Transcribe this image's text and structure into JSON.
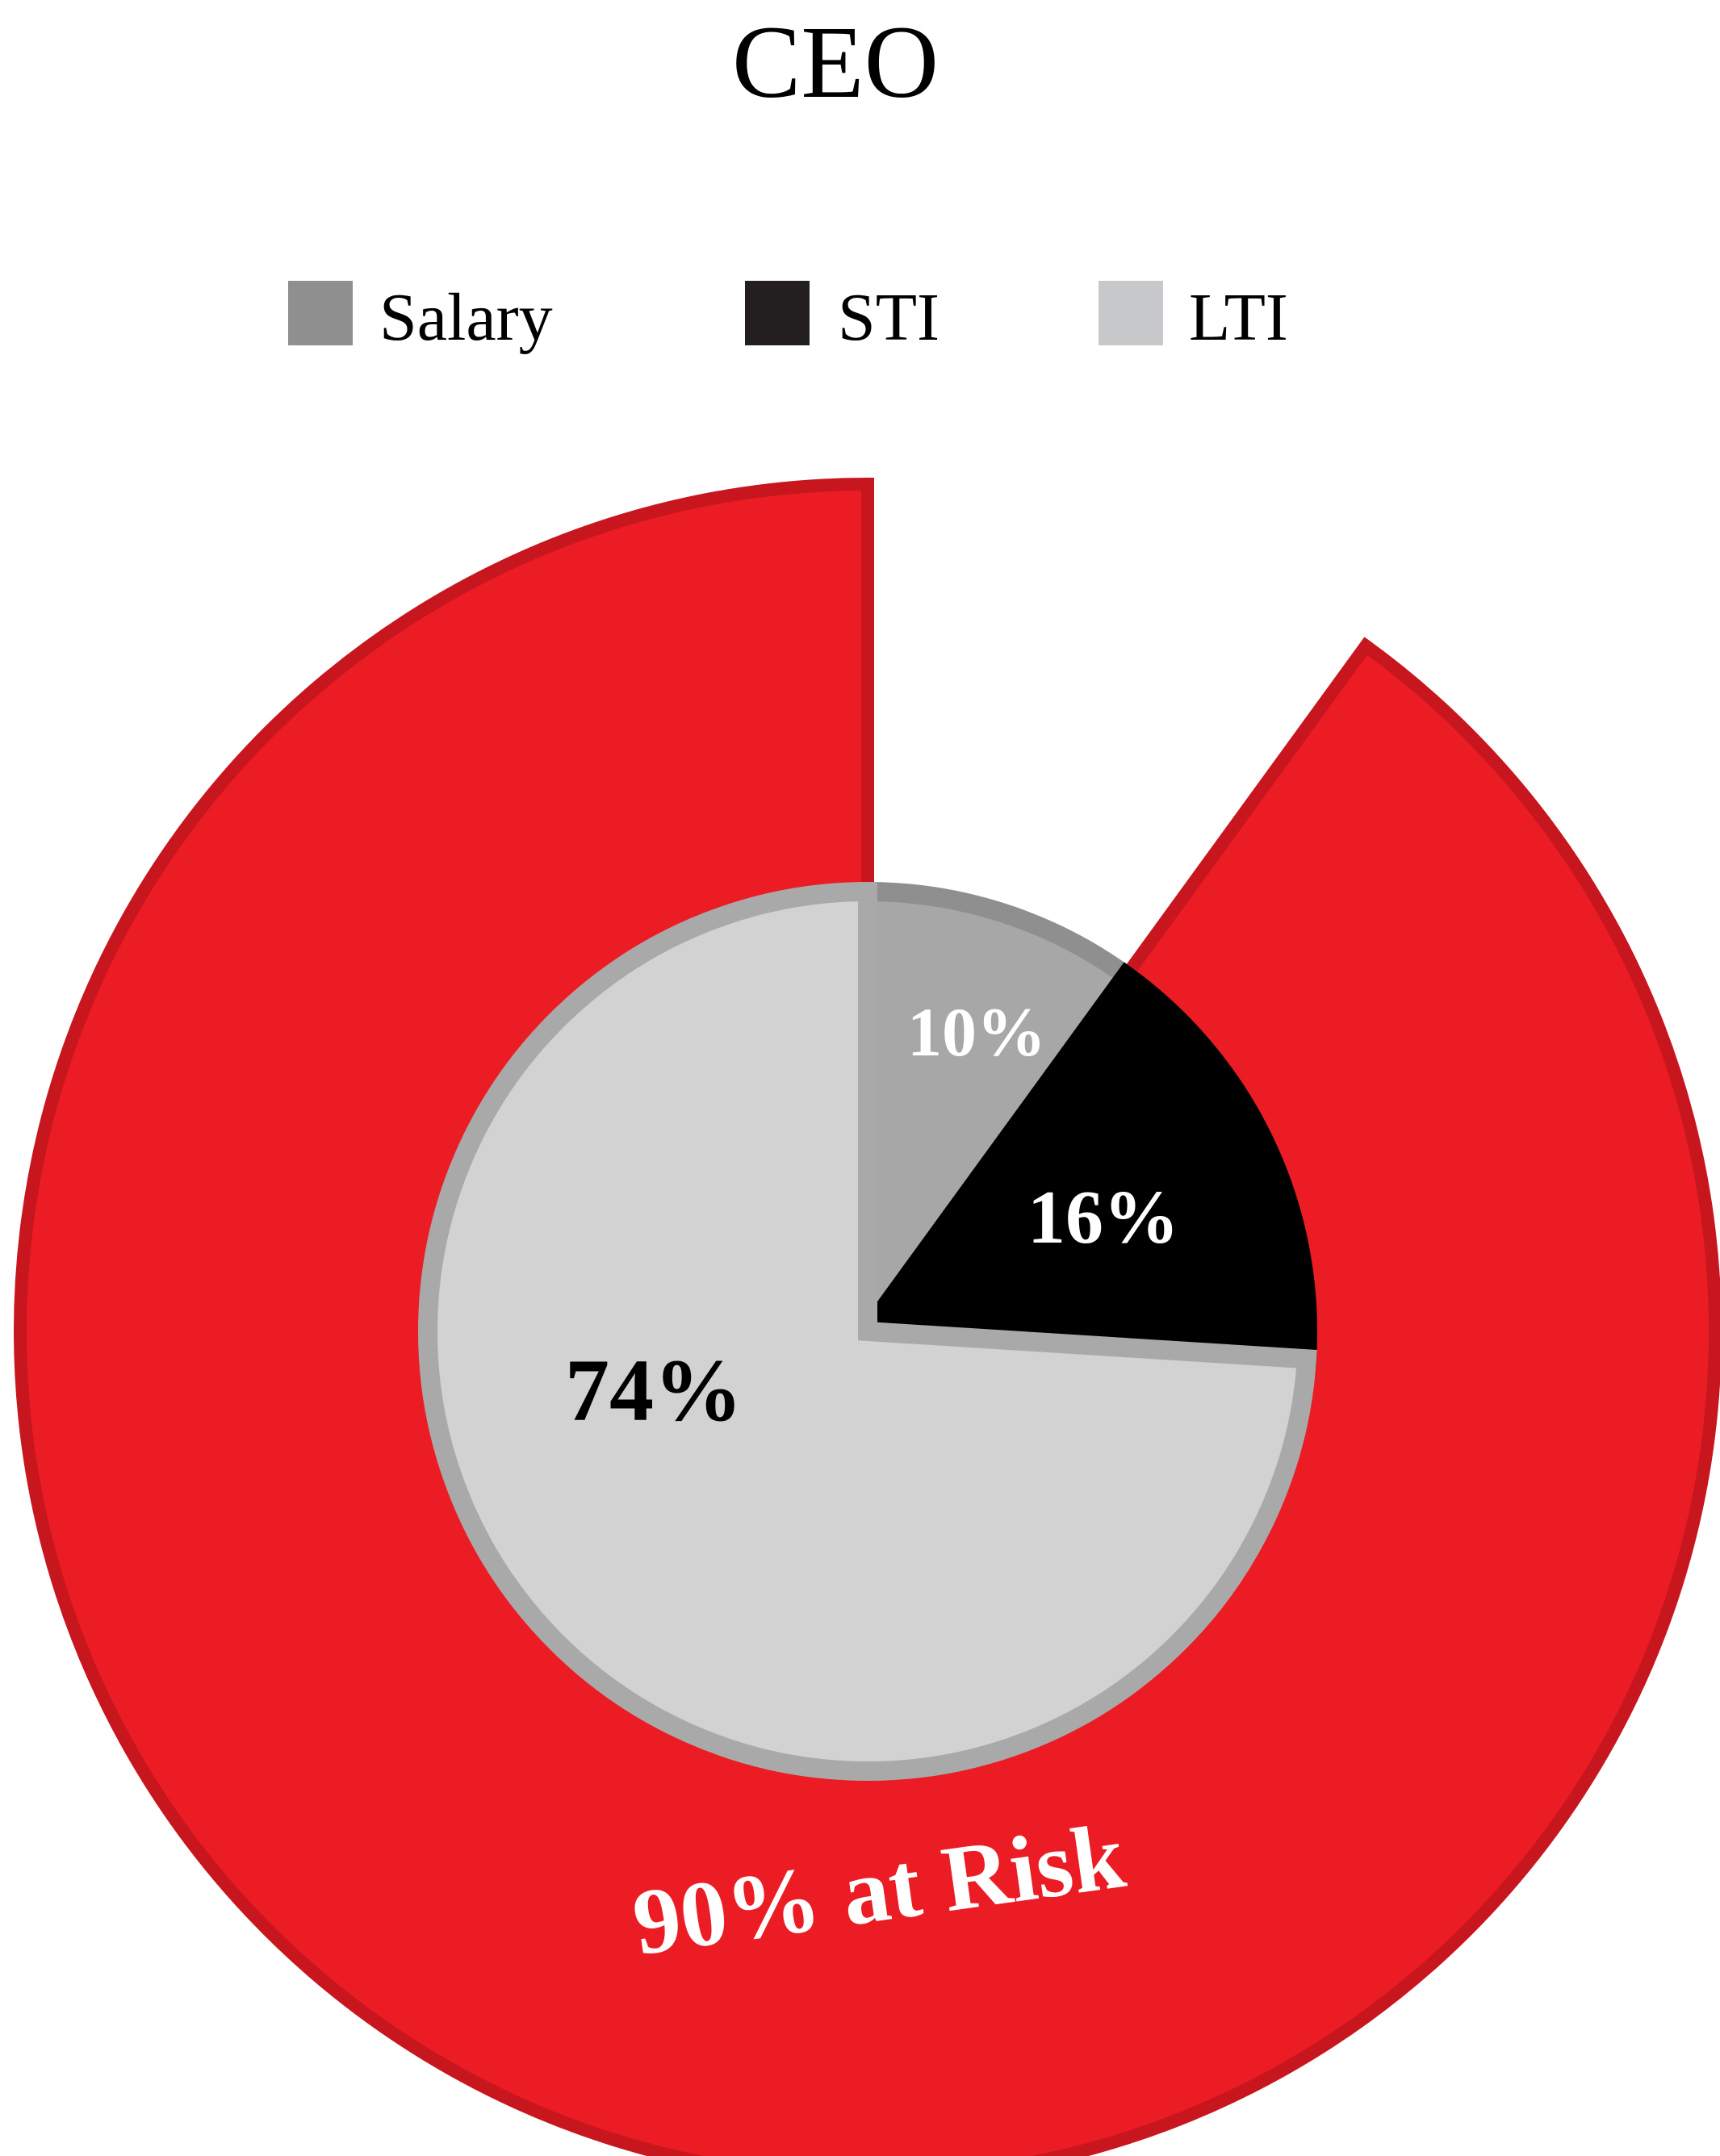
{
  "chart_data": {
    "type": "pie",
    "title": "CEO",
    "legend": {
      "placement": "top",
      "entries": [
        {
          "label": "Salary",
          "color": "#8f8f8f"
        },
        {
          "label": "STI",
          "color": "#231f20"
        },
        {
          "label": "LTI",
          "color": "#c7c8ca"
        }
      ]
    },
    "slices": [
      {
        "name": "Salary",
        "value": 10,
        "label": "10%",
        "color": "#a7a7a7",
        "stroke": "#8f8f8f",
        "label_color": "#ffffff"
      },
      {
        "name": "STI",
        "value": 16,
        "label": "16%",
        "color": "#000000",
        "stroke": "#000000",
        "label_color": "#ffffff"
      },
      {
        "name": "LTI",
        "value": 74,
        "label": "74%",
        "color": "#d2d2d2",
        "stroke": "#a9a9a9",
        "label_color": "#000000"
      }
    ],
    "at_risk": {
      "value": 90,
      "label": "90% at Risk",
      "color": "#ec1c24",
      "stroke": "#c8161e",
      "label_color": "#ffffff"
    }
  }
}
